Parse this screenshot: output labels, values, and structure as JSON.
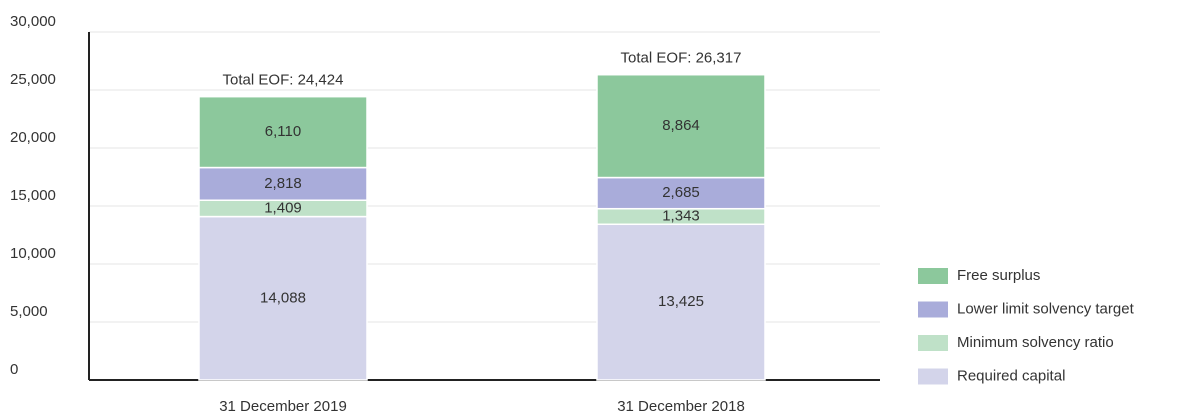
{
  "chart_data": {
    "type": "stacked_bar",
    "categories": [
      "31 December 2019",
      "31 December 2018"
    ],
    "series": [
      {
        "name": "Required capital",
        "color": "#d3d4ea",
        "values": [
          14088,
          13425
        ],
        "value_labels": [
          "14,088",
          "13,425"
        ]
      },
      {
        "name": "Minimum solvency ratio",
        "color": "#bfe1c8",
        "values": [
          1409,
          1343
        ],
        "value_labels": [
          "1,409",
          "1,343"
        ]
      },
      {
        "name": "Lower limit solvency target",
        "color": "#a9acda",
        "values": [
          2818,
          2685
        ],
        "value_labels": [
          "2,818",
          "2,685"
        ]
      },
      {
        "name": "Free surplus",
        "color": "#8cc89c",
        "values": [
          6110,
          8864
        ],
        "value_labels": [
          "6,110",
          "8,864"
        ]
      }
    ],
    "annotations": [
      "Total EOF: 24,424",
      "Total EOF: 26,317"
    ],
    "ylim": [
      0,
      30000
    ],
    "yticks": [
      0,
      {
        "value": 5000,
        "label": "5,000"
      },
      {
        "value": 10000,
        "label": "10,000"
      },
      {
        "value": 15000,
        "label": "15,000"
      },
      {
        "value": 20000,
        "label": "20,000"
      },
      {
        "value": 25000,
        "label": "25,000"
      },
      {
        "value": 30000,
        "label": "30,000"
      }
    ],
    "grid": true,
    "legend": "right"
  }
}
